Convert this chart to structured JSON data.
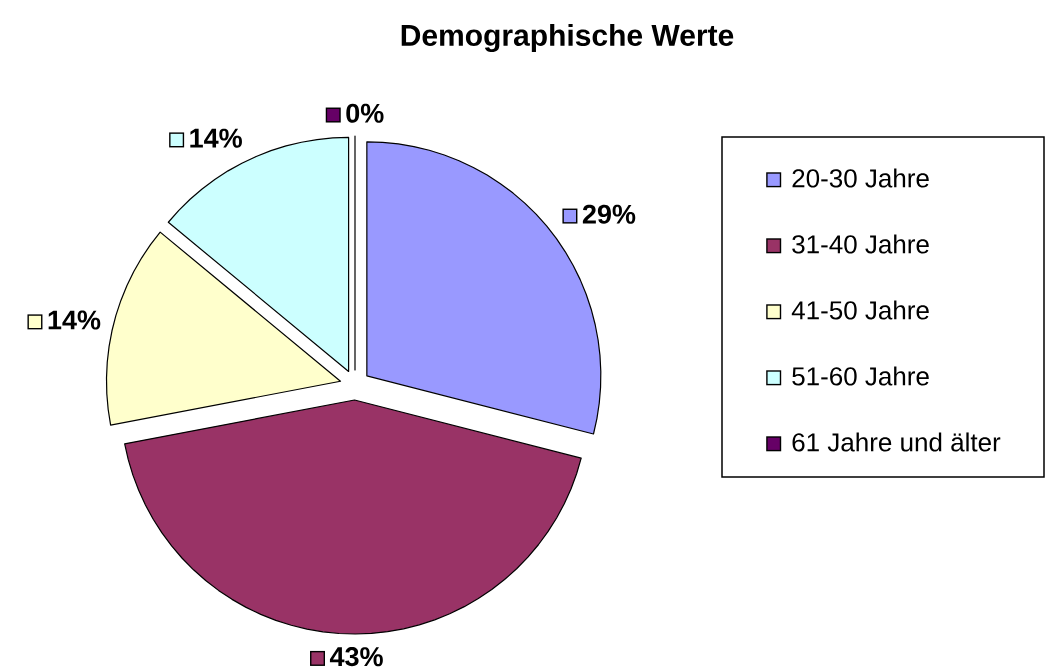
{
  "chart_data": {
    "type": "pie",
    "title": "Demographische Werte",
    "categories": [
      "20-30 Jahre",
      "31-40 Jahre",
      "41-50 Jahre",
      "51-60 Jahre",
      "61 Jahre und älter"
    ],
    "values": [
      29,
      43,
      14,
      14,
      0
    ],
    "colors": [
      "#9999ff",
      "#993366",
      "#ffffcc",
      "#ccffff",
      "#660066"
    ],
    "value_labels": [
      "29%",
      "43%",
      "14%",
      "14%",
      "0%"
    ],
    "legend": "right"
  }
}
